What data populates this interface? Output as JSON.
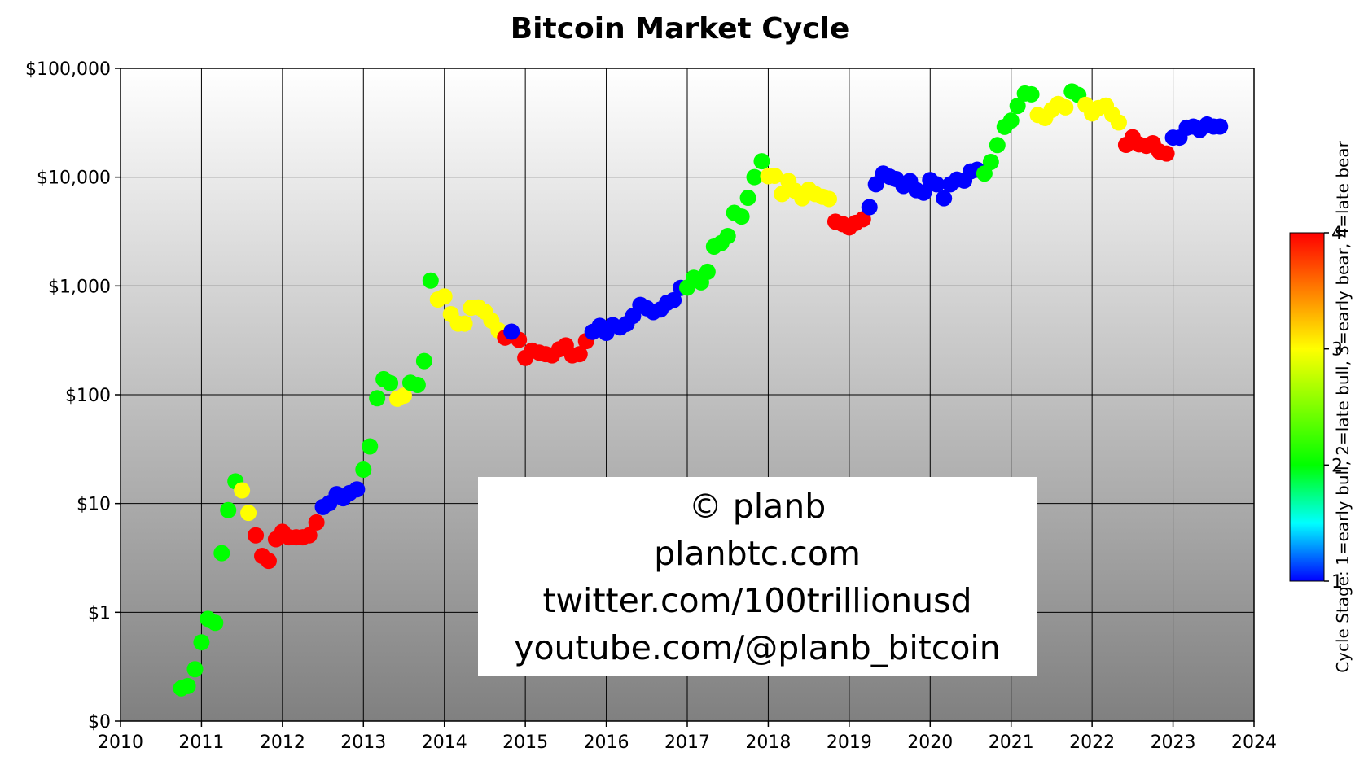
{
  "chart_data": {
    "type": "scatter",
    "title": "Bitcoin Market Cycle",
    "x_ticks": [
      "2010",
      "2011",
      "2012",
      "2013",
      "2014",
      "2015",
      "2016",
      "2017",
      "2018",
      "2019",
      "2020",
      "2021",
      "2022",
      "2023",
      "2024"
    ],
    "xlim": [
      2010,
      2024
    ],
    "y_scale": "log",
    "y_ticks": [
      "$0",
      "$1",
      "$10",
      "$100",
      "$1,000",
      "$10,000",
      "$100,000"
    ],
    "colorbar": {
      "label": "Cycle Stage: 1=early bull, 2=late bull, 3=early bear, 4=late bear",
      "ticks": [
        "1",
        "2",
        "3",
        "4"
      ],
      "range": [
        1,
        4
      ]
    },
    "annotation": [
      "© planb",
      "planbtc.com",
      "twitter.com/100trillionusd",
      "youtube.com/@planb_bitcoin"
    ],
    "grid": true,
    "stage_colors": {
      "1": "#0000ff",
      "2": "#00ff00",
      "3": "#ffff00",
      "4": "#ff0000"
    },
    "points": [
      [
        2010.75,
        0.2,
        2
      ],
      [
        2010.83,
        0.21,
        2
      ],
      [
        2010.92,
        0.3,
        2
      ],
      [
        2011.0,
        0.53,
        2
      ],
      [
        2011.08,
        0.87,
        2
      ],
      [
        2011.17,
        0.8,
        2
      ],
      [
        2011.25,
        3.5,
        2
      ],
      [
        2011.33,
        8.7,
        2
      ],
      [
        2011.42,
        16,
        2
      ],
      [
        2011.5,
        13.2,
        3
      ],
      [
        2011.58,
        8.2,
        3
      ],
      [
        2011.67,
        5.1,
        4
      ],
      [
        2011.75,
        3.3,
        4
      ],
      [
        2011.83,
        2.97,
        4
      ],
      [
        2011.92,
        4.7,
        4
      ],
      [
        2012.0,
        5.5,
        4
      ],
      [
        2012.08,
        4.9,
        4
      ],
      [
        2012.17,
        4.9,
        4
      ],
      [
        2012.25,
        4.9,
        4
      ],
      [
        2012.33,
        5.1,
        4
      ],
      [
        2012.42,
        6.7,
        4
      ],
      [
        2012.5,
        9.3,
        1
      ],
      [
        2012.58,
        10.1,
        1
      ],
      [
        2012.67,
        12.2,
        1
      ],
      [
        2012.75,
        11.2,
        1
      ],
      [
        2012.83,
        12.5,
        1
      ],
      [
        2012.92,
        13.5,
        1
      ],
      [
        2013.0,
        20.5,
        2
      ],
      [
        2013.08,
        33.5,
        2
      ],
      [
        2013.17,
        93,
        2
      ],
      [
        2013.25,
        139,
        2
      ],
      [
        2013.33,
        128,
        2
      ],
      [
        2013.42,
        92,
        3
      ],
      [
        2013.5,
        98,
        3
      ],
      [
        2013.58,
        129,
        2
      ],
      [
        2013.67,
        123,
        2
      ],
      [
        2013.75,
        204,
        2
      ],
      [
        2013.83,
        1120,
        2
      ],
      [
        2013.92,
        750,
        3
      ],
      [
        2014.0,
        800,
        3
      ],
      [
        2014.08,
        550,
        3
      ],
      [
        2014.17,
        450,
        3
      ],
      [
        2014.25,
        450,
        3
      ],
      [
        2014.33,
        630,
        3
      ],
      [
        2014.42,
        635,
        3
      ],
      [
        2014.5,
        580,
        3
      ],
      [
        2014.58,
        480,
        3
      ],
      [
        2014.67,
        390,
        3
      ],
      [
        2014.75,
        335,
        4
      ],
      [
        2014.92,
        320,
        4
      ],
      [
        2015.0,
        218,
        4
      ],
      [
        2015.08,
        254,
        4
      ],
      [
        2015.17,
        244,
        4
      ],
      [
        2015.25,
        236,
        4
      ],
      [
        2015.33,
        230,
        4
      ],
      [
        2015.42,
        262,
        4
      ],
      [
        2015.5,
        284,
        4
      ],
      [
        2015.58,
        230,
        4
      ],
      [
        2015.67,
        236,
        4
      ],
      [
        2015.75,
        311,
        4
      ],
      [
        2014.83,
        380,
        1
      ],
      [
        2015.83,
        378,
        1
      ],
      [
        2015.92,
        430,
        1
      ],
      [
        2016.0,
        370,
        1
      ],
      [
        2016.08,
        436,
        1
      ],
      [
        2016.17,
        416,
        1
      ],
      [
        2016.25,
        448,
        1
      ],
      [
        2016.33,
        530,
        1
      ],
      [
        2016.42,
        670,
        1
      ],
      [
        2016.5,
        624,
        1
      ],
      [
        2016.58,
        575,
        1
      ],
      [
        2016.67,
        608,
        1
      ],
      [
        2016.75,
        700,
        1
      ],
      [
        2016.83,
        740,
        1
      ],
      [
        2016.92,
        960,
        1
      ],
      [
        2017.0,
        965,
        2
      ],
      [
        2017.08,
        1190,
        2
      ],
      [
        2017.17,
        1080,
        2
      ],
      [
        2017.25,
        1350,
        2
      ],
      [
        2017.33,
        2300,
        2
      ],
      [
        2017.42,
        2480,
        2
      ],
      [
        2017.5,
        2875,
        2
      ],
      [
        2017.58,
        4700,
        2
      ],
      [
        2017.67,
        4340,
        2
      ],
      [
        2017.75,
        6460,
        2
      ],
      [
        2017.83,
        10000,
        2
      ],
      [
        2017.92,
        14000,
        2
      ],
      [
        2018.0,
        10200,
        3
      ],
      [
        2018.08,
        10300,
        3
      ],
      [
        2018.17,
        7000,
        3
      ],
      [
        2018.25,
        9200,
        3
      ],
      [
        2018.33,
        7500,
        3
      ],
      [
        2018.42,
        6400,
        3
      ],
      [
        2018.5,
        7700,
        3
      ],
      [
        2018.58,
        7000,
        3
      ],
      [
        2018.67,
        6600,
        3
      ],
      [
        2018.75,
        6300,
        3
      ],
      [
        2018.83,
        3900,
        4
      ],
      [
        2018.92,
        3700,
        4
      ],
      [
        2019.0,
        3450,
        4
      ],
      [
        2019.08,
        3800,
        4
      ],
      [
        2019.17,
        4100,
        4
      ],
      [
        2019.25,
        5300,
        1
      ],
      [
        2019.33,
        8600,
        1
      ],
      [
        2019.42,
        10800,
        1
      ],
      [
        2019.5,
        10100,
        1
      ],
      [
        2019.58,
        9600,
        1
      ],
      [
        2019.67,
        8300,
        1
      ],
      [
        2019.75,
        9200,
        1
      ],
      [
        2019.83,
        7600,
        1
      ],
      [
        2019.92,
        7200,
        1
      ],
      [
        2020.0,
        9400,
        1
      ],
      [
        2020.08,
        8600,
        1
      ],
      [
        2020.17,
        6400,
        1
      ],
      [
        2020.25,
        8600,
        1
      ],
      [
        2020.33,
        9500,
        1
      ],
      [
        2020.42,
        9300,
        1
      ],
      [
        2020.5,
        11300,
        1
      ],
      [
        2020.58,
        11700,
        1
      ],
      [
        2020.67,
        10800,
        2
      ],
      [
        2020.75,
        13800,
        2
      ],
      [
        2020.83,
        19700,
        2
      ],
      [
        2020.92,
        29000,
        2
      ],
      [
        2021.0,
        33100,
        2
      ],
      [
        2021.08,
        45200,
        2
      ],
      [
        2021.17,
        58800,
        2
      ],
      [
        2021.25,
        57700,
        2
      ],
      [
        2021.33,
        37300,
        3
      ],
      [
        2021.42,
        35000,
        3
      ],
      [
        2021.5,
        41500,
        3
      ],
      [
        2021.58,
        47100,
        3
      ],
      [
        2021.67,
        43800,
        3
      ],
      [
        2021.75,
        61300,
        2
      ],
      [
        2021.83,
        57000,
        2
      ],
      [
        2021.92,
        46300,
        3
      ],
      [
        2022.0,
        38500,
        3
      ],
      [
        2022.08,
        43200,
        3
      ],
      [
        2022.17,
        45500,
        3
      ],
      [
        2022.25,
        37700,
        3
      ],
      [
        2022.33,
        31800,
        3
      ],
      [
        2022.42,
        19800,
        4
      ],
      [
        2022.5,
        23300,
        4
      ],
      [
        2022.58,
        20000,
        4
      ],
      [
        2022.67,
        19400,
        4
      ],
      [
        2022.75,
        20500,
        4
      ],
      [
        2022.83,
        17200,
        4
      ],
      [
        2022.92,
        16500,
        4
      ],
      [
        2023.0,
        23100,
        1
      ],
      [
        2023.08,
        23100,
        1
      ],
      [
        2023.17,
        28500,
        1
      ],
      [
        2023.25,
        29200,
        1
      ],
      [
        2023.33,
        27200,
        1
      ],
      [
        2023.42,
        30500,
        1
      ],
      [
        2023.5,
        29200,
        1
      ],
      [
        2023.58,
        29200,
        1
      ]
    ]
  }
}
